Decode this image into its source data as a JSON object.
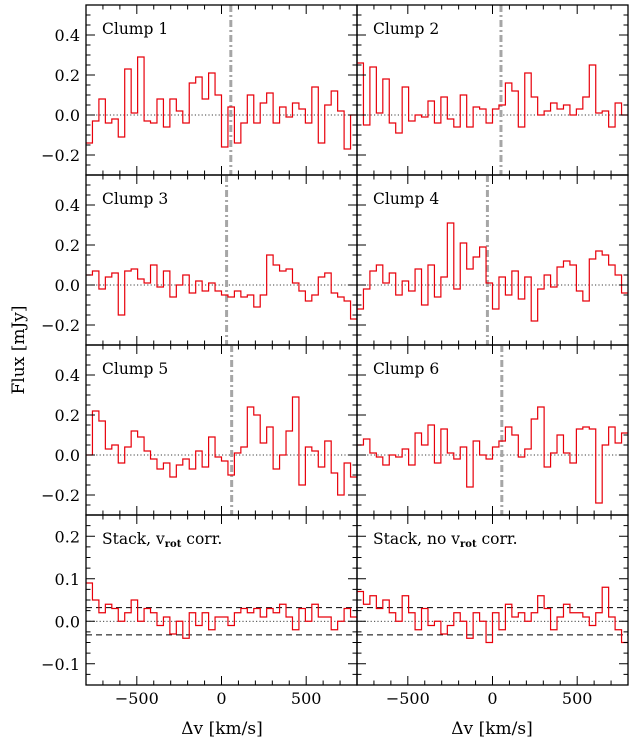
{
  "ylabel": "Flux [mJy]",
  "xlabel": "Δv [km/s]",
  "xlim": [
    -800,
    800
  ],
  "xticks": [
    -500,
    0,
    500
  ],
  "colors": {
    "spectrum": "#e8000b",
    "velocity_line": "#a6a6a6",
    "axes": "#000000"
  },
  "panels": [
    {
      "title": "Clump 1",
      "row": 0,
      "col": 0,
      "ylim": [
        -0.3,
        0.55
      ],
      "yticks": [
        -0.2,
        0.0,
        0.2,
        0.4
      ],
      "ytick_labels": [
        "−0.2",
        "0.0",
        "0.2",
        "0.4"
      ],
      "v_line": 55,
      "sigma": null,
      "flux": [
        -0.14,
        -0.03,
        0.08,
        -0.04,
        -0.02,
        -0.11,
        0.23,
        0.01,
        0.29,
        -0.03,
        -0.04,
        0.08,
        -0.06,
        0.08,
        0.02,
        -0.04,
        0.16,
        0.19,
        0.08,
        0.21,
        0.1,
        -0.16,
        0.04,
        -0.14,
        -0.04,
        0.1,
        -0.04,
        0.06,
        0.11,
        -0.04,
        0.04,
        -0.01,
        0.06,
        0.03,
        -0.04,
        0.14,
        -0.14,
        0.05,
        0.12,
        0.02,
        -0.17,
        0.0
      ]
    },
    {
      "title": "Clump 2",
      "row": 0,
      "col": 1,
      "ylim": [
        -0.3,
        0.55
      ],
      "yticks": [
        -0.2,
        0.0,
        0.2,
        0.4
      ],
      "ytick_labels": [
        "−0.2",
        "0.0",
        "0.2",
        "0.4"
      ],
      "v_line": 50,
      "sigma": null,
      "flux": [
        0.26,
        -0.05,
        0.24,
        0.01,
        0.18,
        -0.04,
        -0.09,
        0.14,
        -0.03,
        0.0,
        -0.01,
        0.07,
        -0.04,
        0.09,
        -0.02,
        -0.06,
        0.1,
        -0.06,
        0.04,
        0.03,
        -0.04,
        0.03,
        0.05,
        0.16,
        0.12,
        -0.06,
        0.21,
        0.09,
        0.0,
        0.02,
        0.06,
        0.03,
        0.05,
        0.0,
        0.03,
        0.09,
        0.25,
        0.01,
        0.02,
        -0.06,
        0.06,
        0.0
      ]
    },
    {
      "title": "Clump 3",
      "row": 1,
      "col": 0,
      "ylim": [
        -0.3,
        0.55
      ],
      "yticks": [
        -0.2,
        0.0,
        0.2,
        0.4
      ],
      "ytick_labels": [
        "−0.2",
        "0.0",
        "0.2",
        "0.4"
      ],
      "v_line": 30,
      "sigma": null,
      "flux": [
        0.05,
        0.07,
        -0.02,
        0.04,
        0.06,
        -0.15,
        0.07,
        0.08,
        0.03,
        0.01,
        0.1,
        -0.01,
        0.07,
        -0.06,
        0.0,
        0.05,
        -0.04,
        0.02,
        -0.03,
        0.01,
        -0.03,
        -0.05,
        -0.06,
        -0.03,
        -0.06,
        -0.05,
        -0.11,
        -0.05,
        0.15,
        0.1,
        0.07,
        0.08,
        0.01,
        -0.03,
        -0.08,
        -0.05,
        0.04,
        0.06,
        -0.04,
        -0.06,
        -0.08,
        -0.17
      ]
    },
    {
      "title": "Clump 4",
      "row": 1,
      "col": 1,
      "ylim": [
        -0.3,
        0.55
      ],
      "yticks": [
        -0.2,
        0.0,
        0.2,
        0.4
      ],
      "ytick_labels": [
        "−0.2",
        "0.0",
        "0.2",
        "0.4"
      ],
      "v_line": -30,
      "sigma": null,
      "flux": [
        -0.12,
        -0.02,
        0.07,
        0.1,
        0.01,
        0.06,
        -0.05,
        0.02,
        -0.03,
        0.08,
        -0.1,
        0.1,
        -0.06,
        0.04,
        0.31,
        -0.02,
        0.21,
        0.08,
        0.14,
        0.19,
        0.01,
        -0.12,
        0.04,
        -0.05,
        0.07,
        -0.07,
        0.04,
        -0.18,
        -0.02,
        0.05,
        -0.01,
        0.09,
        0.12,
        0.1,
        -0.03,
        -0.08,
        0.13,
        0.17,
        0.15,
        0.1,
        0.05,
        -0.04
      ]
    },
    {
      "title": "Clump 5",
      "row": 2,
      "col": 0,
      "ylim": [
        -0.3,
        0.55
      ],
      "yticks": [
        -0.2,
        0.0,
        0.2,
        0.4
      ],
      "ytick_labels": [
        "−0.2",
        "0.0",
        "0.2",
        "0.4"
      ],
      "v_line": 60,
      "sigma": null,
      "flux": [
        0.0,
        0.22,
        0.17,
        0.03,
        0.05,
        -0.04,
        0.04,
        0.12,
        0.09,
        0.02,
        -0.02,
        -0.07,
        -0.04,
        -0.11,
        -0.05,
        -0.02,
        -0.07,
        0.02,
        -0.06,
        0.09,
        -0.01,
        -0.03,
        -0.1,
        0.01,
        0.04,
        0.24,
        0.2,
        0.06,
        0.14,
        -0.07,
        0.0,
        0.12,
        0.29,
        -0.15,
        0.04,
        0.02,
        -0.06,
        0.07,
        -0.09,
        -0.2,
        -0.04,
        -0.11
      ]
    },
    {
      "title": "Clump 6",
      "row": 2,
      "col": 1,
      "ylim": [
        -0.3,
        0.55
      ],
      "yticks": [
        -0.2,
        0.0,
        0.2,
        0.4
      ],
      "ytick_labels": [
        "−0.2",
        "0.0",
        "0.2",
        "0.4"
      ],
      "v_line": 55,
      "sigma": null,
      "flux": [
        0.05,
        0.08,
        0.01,
        -0.01,
        -0.05,
        0.0,
        -0.01,
        0.03,
        -0.05,
        0.11,
        0.05,
        0.15,
        -0.04,
        0.13,
        0.01,
        -0.02,
        0.04,
        -0.16,
        0.07,
        0.0,
        -0.02,
        0.04,
        0.07,
        0.14,
        0.1,
        -0.01,
        0.03,
        0.18,
        0.24,
        -0.06,
        0.01,
        0.1,
        0.01,
        -0.04,
        0.13,
        0.14,
        0.13,
        -0.24,
        0.05,
        0.14,
        0.06,
        0.11
      ]
    },
    {
      "title": "Stack, v",
      "title_sub": "rot",
      "title_end": " corr.",
      "row": 3,
      "col": 0,
      "ylim": [
        -0.15,
        0.25
      ],
      "yticks": [
        -0.1,
        0.0,
        0.1,
        0.2
      ],
      "ytick_labels": [
        "−0.1",
        "0.0",
        "0.1",
        "0.2"
      ],
      "v_line": null,
      "sigma": 0.032,
      "flux": [
        0.09,
        0.05,
        0.02,
        0.04,
        0.03,
        0.0,
        0.02,
        0.05,
        0.0,
        0.03,
        0.02,
        -0.01,
        0.01,
        -0.03,
        0.0,
        -0.04,
        0.02,
        -0.01,
        0.02,
        -0.02,
        0.01,
        0.01,
        -0.01,
        0.02,
        0.03,
        0.02,
        0.03,
        0.01,
        0.03,
        0.02,
        0.04,
        0.01,
        -0.02,
        0.03,
        0.0,
        0.04,
        0.01,
        0.01,
        -0.02,
        0.0,
        0.03,
        0.01
      ]
    },
    {
      "title": "Stack, no v",
      "title_sub": "rot",
      "title_end": " corr.",
      "row": 3,
      "col": 1,
      "ylim": [
        -0.15,
        0.25
      ],
      "yticks": [
        -0.1,
        0.0,
        0.1,
        0.2
      ],
      "ytick_labels": [
        "−0.1",
        "0.0",
        "0.1",
        "0.2"
      ],
      "v_line": null,
      "sigma": 0.032,
      "flux": [
        0.07,
        0.04,
        0.06,
        0.03,
        0.05,
        0.02,
        0.0,
        0.06,
        0.02,
        -0.02,
        0.03,
        -0.01,
        0.0,
        -0.03,
        -0.01,
        0.02,
        0.0,
        -0.04,
        0.02,
        0.0,
        -0.05,
        0.02,
        -0.02,
        0.04,
        0.01,
        0.02,
        0.0,
        0.02,
        0.06,
        0.03,
        -0.02,
        0.01,
        0.04,
        0.02,
        0.02,
        0.01,
        -0.01,
        0.02,
        0.08,
        0.01,
        -0.02,
        -0.05
      ]
    }
  ],
  "chart_data": {
    "type": "line",
    "title": "",
    "xlabel": "Δv [km/s]",
    "ylabel": "Flux [mJy]",
    "xlim": [
      -800,
      800
    ],
    "bin_width_kms": 38.1,
    "note_series": [
      "Clump 1",
      "Clump 2",
      "Clump 3",
      "Clump 4",
      "Clump 5",
      "Clump 6",
      "Stack, vrot corr.",
      "Stack, no vrot corr."
    ]
  }
}
